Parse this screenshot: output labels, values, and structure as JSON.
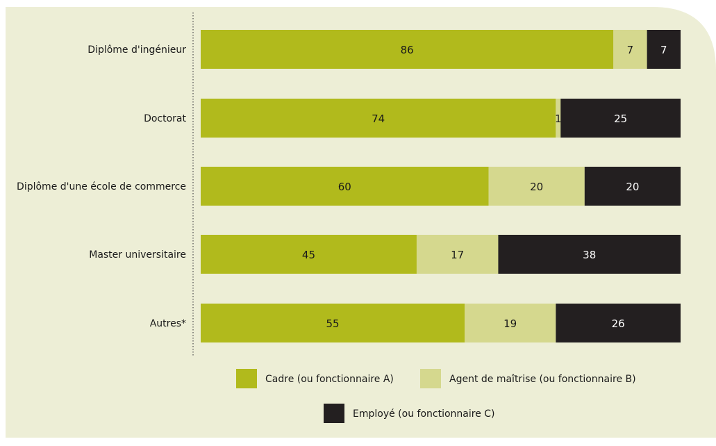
{
  "chart_data": {
    "type": "bar",
    "orientation": "horizontal",
    "stacked": true,
    "categories": [
      "Diplôme d'ingénieur",
      "Doctorat",
      "Diplôme d'une école de commerce",
      "Master universitaire",
      "Autres*"
    ],
    "series": [
      {
        "name": "Cadre (ou fonctionnaire A)",
        "color": "#b1ba1c",
        "text_color": "#1a1a1a",
        "values": [
          86,
          74,
          60,
          45,
          55
        ]
      },
      {
        "name": "Agent de maîtrise (ou fonctionnaire B)",
        "color": "#d5d88e",
        "text_color": "#1a1a1a",
        "values": [
          7,
          1,
          20,
          17,
          19
        ]
      },
      {
        "name": "Employé (ou fonctionnaire C)",
        "color": "#231f20",
        "text_color": "#ffffff",
        "values": [
          7,
          25,
          20,
          38,
          26
        ]
      }
    ],
    "xlim": [
      0,
      100
    ],
    "title": "",
    "xlabel": "",
    "ylabel": "",
    "grid": false,
    "legend_position": "bottom",
    "background_color": "#edeed6"
  }
}
